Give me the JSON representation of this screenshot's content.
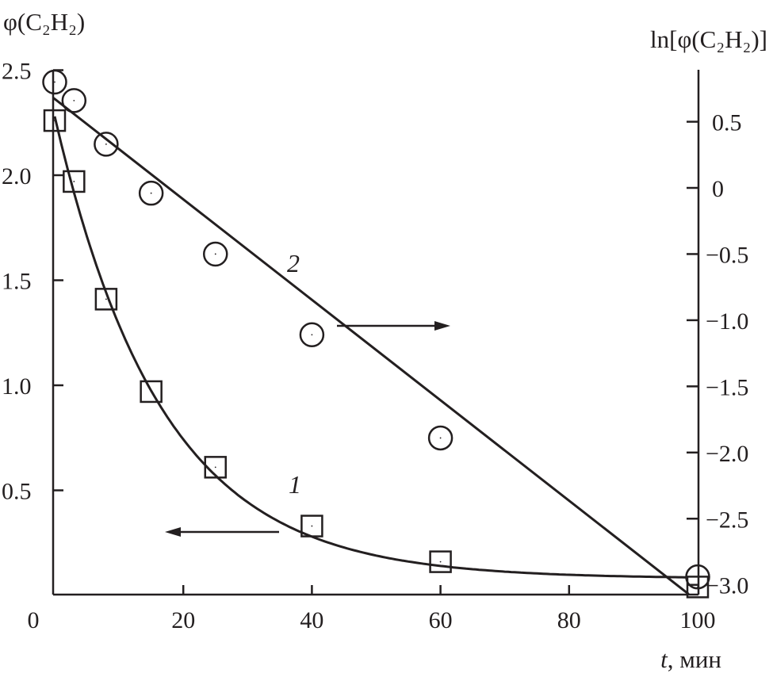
{
  "chart_data": {
    "type": "scatter",
    "xlabel_var": "t",
    "xlabel_unit": ", мин",
    "ylabel_left": "φ(C₂H₂)",
    "ylabel_right": "ln[φ(C₂H₂)]",
    "xlim": [
      0,
      100
    ],
    "ylim_left": [
      0,
      2.5
    ],
    "ylim_right": [
      -3.08,
      0.9
    ],
    "x_ticks": [
      "0",
      "20",
      "40",
      "60",
      "80",
      "100"
    ],
    "y_left_ticks": [
      "0.5",
      "1.0",
      "1.5",
      "2.0",
      "2.5"
    ],
    "y_right_ticks": [
      "0.5",
      "0",
      "−0.5",
      "−1.0",
      "−1.5",
      "−2.0",
      "−2.5",
      "−3.0"
    ],
    "grid": false,
    "series": [
      {
        "name": "1",
        "axis": "left",
        "marker": "square",
        "x": [
          0,
          3,
          8,
          15,
          25,
          40,
          60,
          100
        ],
        "y": [
          2.26,
          1.97,
          1.41,
          0.97,
          0.61,
          0.33,
          0.16,
          0.04
        ],
        "fit": "exponential decay",
        "arrow": "left"
      },
      {
        "name": "2",
        "axis": "right",
        "marker": "circle",
        "x": [
          0,
          3,
          8,
          15,
          25,
          40,
          60,
          100
        ],
        "y": [
          0.8,
          0.66,
          0.33,
          -0.04,
          -0.5,
          -1.11,
          -1.89,
          -2.94
        ],
        "fit": "linear",
        "arrow": "right"
      }
    ],
    "color": "#231f20"
  }
}
